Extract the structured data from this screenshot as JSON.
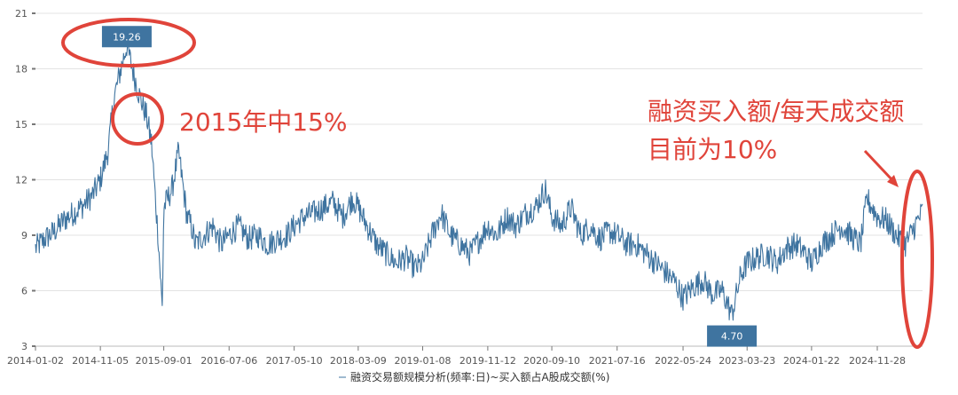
{
  "colors": {
    "series": "#3f74a0",
    "grid": "#e3e3e3",
    "axis": "#777777",
    "annotation": "#e0443a",
    "label_box": "#3f74a0"
  },
  "chart_data": {
    "type": "line",
    "title": "",
    "legend": "融资交易额规模分析(频率:日)~买入额占A股成交额(%)",
    "legend_position": "bottom",
    "grid": true,
    "ylim": [
      3,
      21
    ],
    "yticks": [
      3,
      6,
      9,
      12,
      15,
      18,
      21
    ],
    "xticks": [
      "2014-01-02",
      "2014-11-05",
      "2015-09-01",
      "2016-07-06",
      "2017-05-10",
      "2018-03-09",
      "2019-01-08",
      "2019-11-12",
      "2020-09-10",
      "2021-07-16",
      "2022-05-24",
      "2023-03-23",
      "2024-01-22",
      "2024-11-28"
    ],
    "series": [
      {
        "name": "融资交易额规模分析(频率:日)~买入额占A股成交额(%)",
        "x": [
          "2014-01-02",
          "2014-02-15",
          "2014-04-01",
          "2014-05-15",
          "2014-07-01",
          "2014-08-15",
          "2014-10-01",
          "2014-11-05",
          "2014-12-10",
          "2015-01-10",
          "2015-02-10",
          "2015-03-10",
          "2015-04-10",
          "2015-05-10",
          "2015-06-10",
          "2015-07-05",
          "2015-07-20",
          "2015-08-05",
          "2015-08-25",
          "2015-09-01",
          "2015-10-10",
          "2015-11-10",
          "2015-12-20",
          "2016-01-10",
          "2016-01-28",
          "2016-03-10",
          "2016-04-20",
          "2016-05-30",
          "2016-07-06",
          "2016-08-20",
          "2016-10-05",
          "2016-11-20",
          "2017-01-05",
          "2017-02-20",
          "2017-04-05",
          "2017-05-10",
          "2017-06-25",
          "2017-08-10",
          "2017-09-25",
          "2017-11-10",
          "2017-12-25",
          "2018-02-10",
          "2018-03-09",
          "2018-04-20",
          "2018-06-05",
          "2018-07-20",
          "2018-09-05",
          "2018-10-20",
          "2018-12-05",
          "2019-01-08",
          "2019-02-20",
          "2019-04-05",
          "2019-05-20",
          "2019-07-05",
          "2019-08-20",
          "2019-10-05",
          "2019-11-12",
          "2019-12-25",
          "2020-02-10",
          "2020-03-25",
          "2020-05-10",
          "2020-06-25",
          "2020-08-10",
          "2020-09-10",
          "2020-10-25",
          "2020-12-10",
          "2021-01-25",
          "2021-03-10",
          "2021-04-25",
          "2021-06-10",
          "2021-07-16",
          "2021-08-30",
          "2021-10-15",
          "2021-11-30",
          "2022-01-15",
          "2022-03-01",
          "2022-04-15",
          "2022-05-24",
          "2022-07-10",
          "2022-08-25",
          "2022-10-10",
          "2022-11-25",
          "2023-01-10",
          "2023-02-20",
          "2023-03-23",
          "2023-05-10",
          "2023-06-25",
          "2023-08-10",
          "2023-09-25",
          "2023-11-10",
          "2023-12-25",
          "2024-01-22",
          "2024-03-10",
          "2024-04-25",
          "2024-06-10",
          "2024-07-25",
          "2024-09-10",
          "2024-10-10",
          "2024-11-28",
          "2025-01-10",
          "2025-02-25",
          "2025-04-10",
          "2025-05-25",
          "2025-06-30"
        ],
        "values": [
          8.3,
          8.8,
          9.2,
          9.8,
          10.2,
          10.6,
          11.2,
          12.0,
          13.5,
          16.5,
          18.0,
          19.26,
          17.8,
          16.5,
          15.5,
          14.0,
          11.5,
          9.0,
          5.0,
          10.5,
          11.5,
          13.5,
          10.0,
          9.5,
          8.5,
          9.0,
          9.5,
          8.5,
          9.0,
          9.5,
          8.8,
          9.0,
          8.5,
          8.8,
          9.0,
          9.5,
          10.0,
          10.2,
          10.5,
          10.8,
          10.0,
          11.0,
          10.5,
          9.5,
          8.5,
          8.0,
          7.5,
          7.8,
          7.2,
          7.5,
          9.0,
          10.2,
          9.0,
          8.5,
          8.0,
          8.8,
          9.5,
          9.0,
          10.0,
          9.5,
          10.2,
          10.5,
          11.5,
          10.0,
          9.5,
          10.5,
          9.0,
          9.5,
          8.8,
          9.2,
          9.0,
          8.5,
          8.5,
          8.0,
          7.5,
          7.0,
          6.5,
          5.6,
          6.2,
          6.6,
          5.8,
          6.0,
          4.7,
          6.8,
          7.5,
          7.8,
          8.0,
          7.5,
          8.3,
          8.5,
          8.0,
          7.5,
          8.5,
          9.0,
          9.5,
          9.0,
          8.5,
          11.0,
          10.0,
          9.8,
          9.0,
          8.5,
          9.5,
          10.3
        ]
      }
    ],
    "point_labels": [
      {
        "x": "2015-03-10",
        "value": 19.26,
        "text": "19.26"
      },
      {
        "x": "2023-01-10",
        "value": 4.7,
        "text": "4.70"
      }
    ]
  },
  "annotations": {
    "mid2015": "2015年中15%",
    "line1": "融资买入额/每天成交额",
    "line2": "目前为10%"
  }
}
